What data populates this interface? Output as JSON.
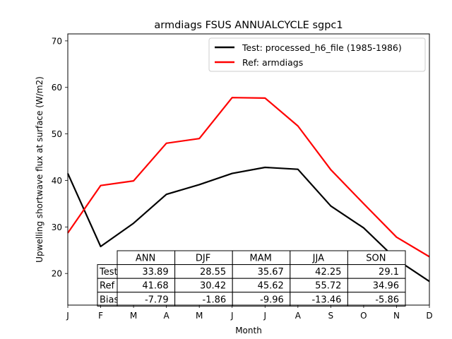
{
  "chart_data": {
    "type": "line",
    "title": "armdiags FSUS ANNUALCYCLE sgpc1",
    "xlabel": "Month",
    "ylabel": "Upwelling shortwave flux at surface (W/m2)",
    "categories": [
      "J",
      "F",
      "M",
      "A",
      "M",
      "J",
      "J",
      "A",
      "S",
      "O",
      "N",
      "D"
    ],
    "ylim": [
      13.2,
      71.5
    ],
    "yticks": [
      20,
      30,
      40,
      50,
      60,
      70
    ],
    "legend_position": "top-right",
    "series": [
      {
        "name": "Test: processed_h6_file (1985-1986)",
        "color": "#000000",
        "values": [
          41.5,
          25.8,
          30.8,
          37.0,
          39.1,
          41.5,
          42.8,
          42.4,
          34.5,
          29.8,
          23.0,
          18.3
        ]
      },
      {
        "name": "Ref: armdiags",
        "color": "#ff0000",
        "values": [
          28.7,
          38.9,
          39.9,
          48.0,
          49.0,
          57.8,
          57.7,
          51.7,
          42.3,
          35.0,
          27.8,
          23.6
        ]
      }
    ],
    "table": {
      "columns": [
        "ANN",
        "DJF",
        "MAM",
        "JJA",
        "SON"
      ],
      "rows": [
        {
          "label": "Test",
          "values": [
            "33.89",
            "28.55",
            "35.67",
            "42.25",
            "29.1"
          ]
        },
        {
          "label": "Ref",
          "values": [
            "41.68",
            "30.42",
            "45.62",
            "55.72",
            "34.96"
          ]
        },
        {
          "label": "Bias",
          "values": [
            "-7.79",
            "-1.86",
            "-9.96",
            "-13.46",
            "-5.86"
          ]
        }
      ]
    }
  }
}
